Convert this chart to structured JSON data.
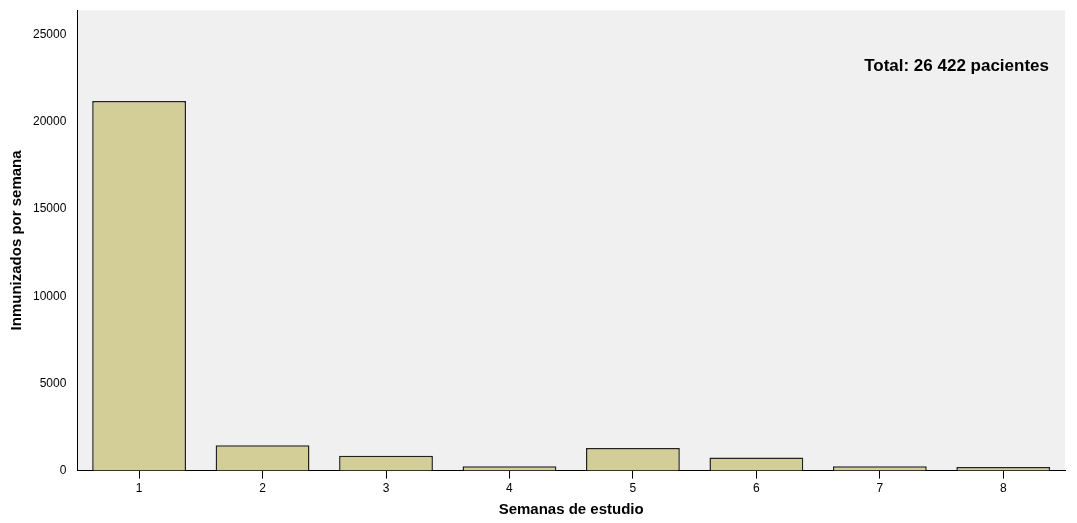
{
  "chart_data": {
    "type": "bar",
    "xlabel": "Semanas de estudio",
    "ylabel": "Inmunizados por semana",
    "categories": [
      "1",
      "2",
      "3",
      "4",
      "5",
      "6",
      "7",
      "8"
    ],
    "values": [
      21200,
      1450,
      850,
      250,
      1300,
      750,
      250,
      200
    ],
    "color": "#d3ce97",
    "ylim": [
      0,
      26400
    ],
    "yticks": [
      0,
      5000,
      10000,
      15000,
      20000,
      25000
    ],
    "grid": false,
    "legend": false,
    "annotations": [
      "Total: 26 422 pacientes"
    ]
  }
}
